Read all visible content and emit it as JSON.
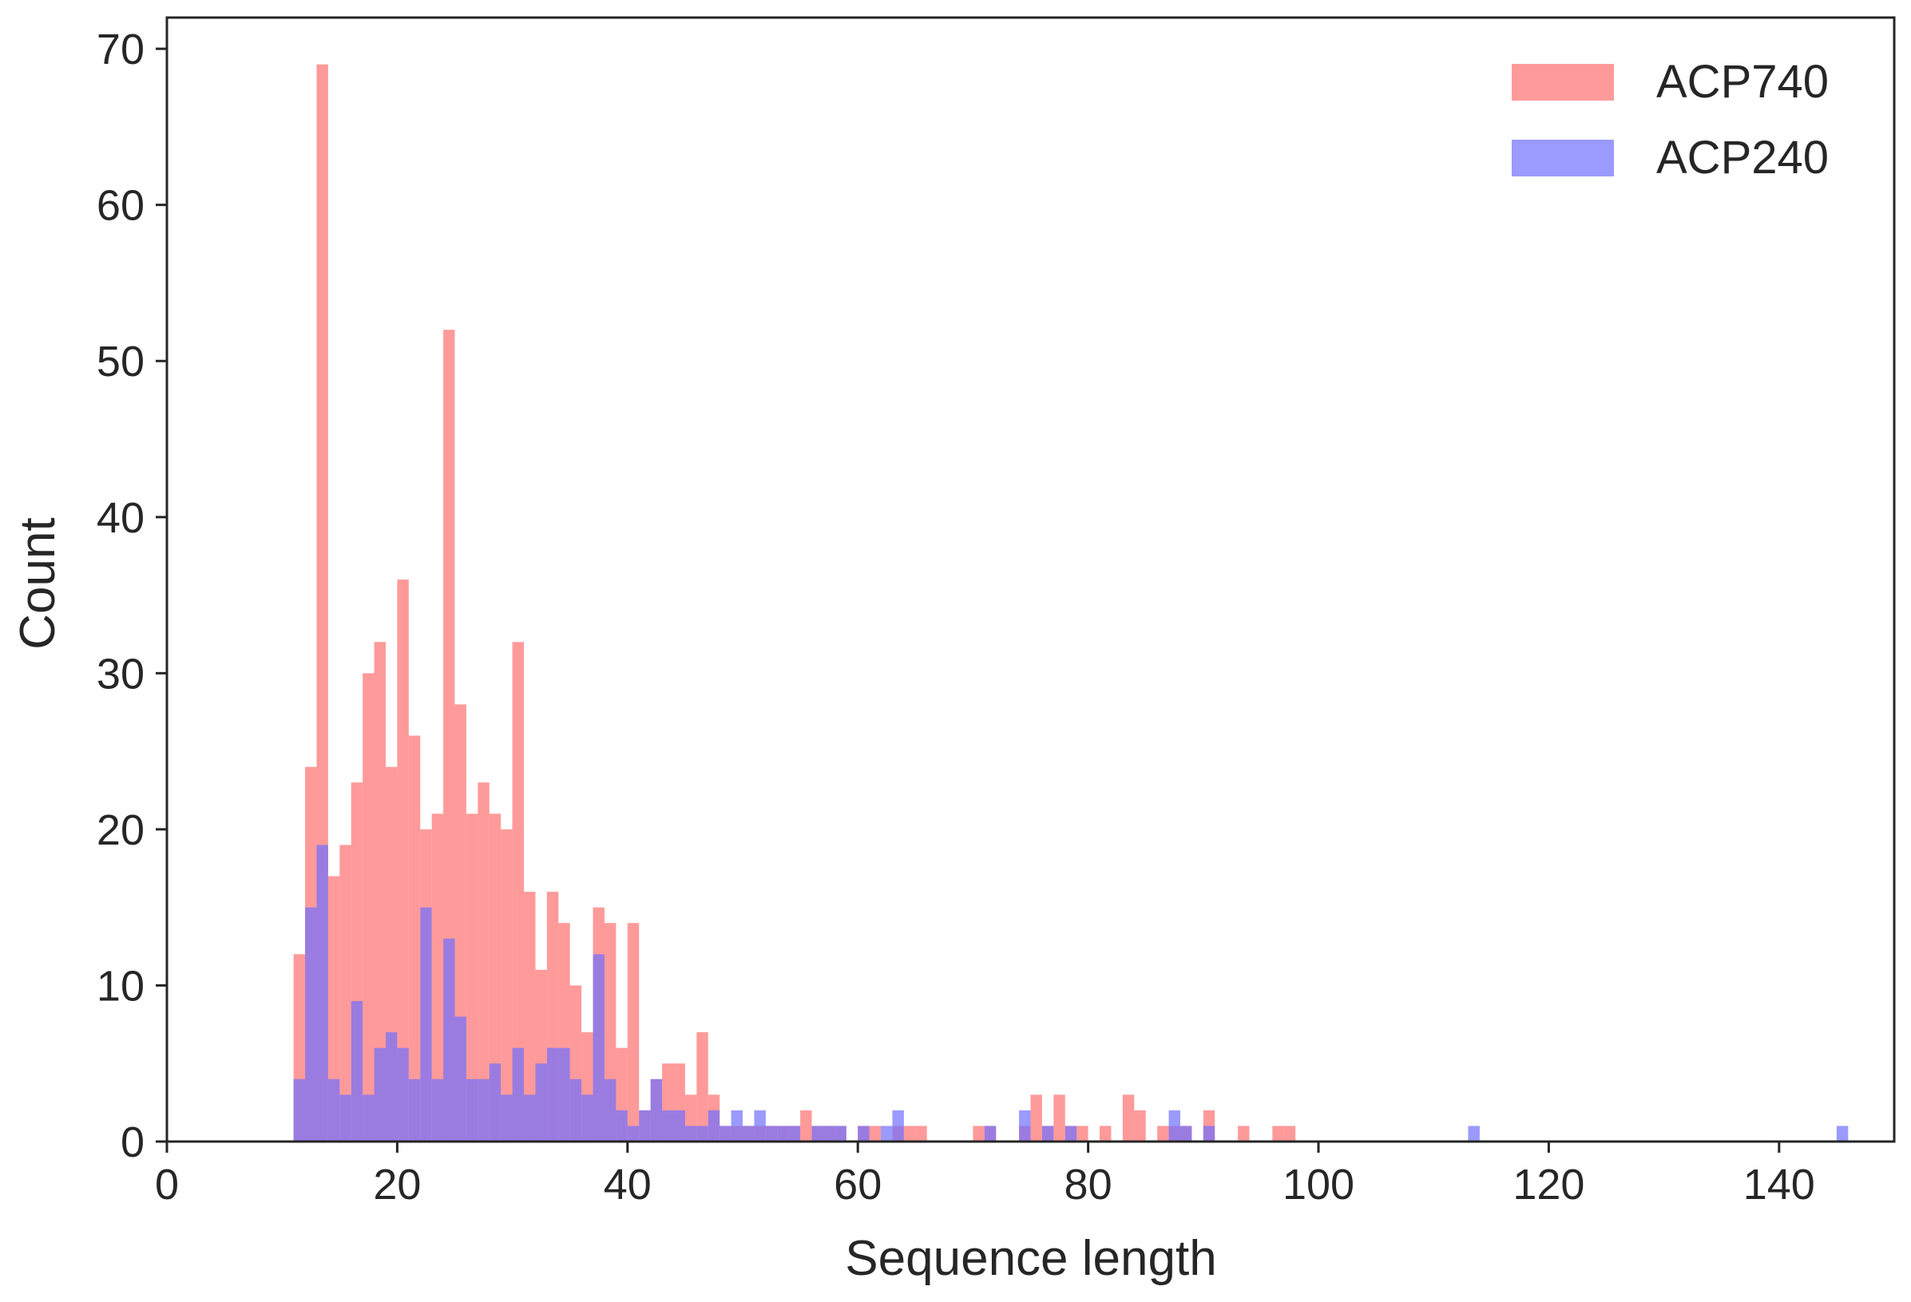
{
  "chart_data": {
    "type": "histogram",
    "title": "",
    "xlabel": "Sequence length",
    "ylabel": "Count",
    "xlim": [
      0,
      150
    ],
    "ylim": [
      0,
      72
    ],
    "xticks": [
      0,
      20,
      40,
      60,
      80,
      100,
      120,
      140
    ],
    "yticks": [
      0,
      10,
      20,
      30,
      40,
      50,
      60,
      70
    ],
    "bin_width": 1,
    "grid": false,
    "legend_position": "top-right",
    "series": [
      {
        "name": "ACP740",
        "color": "#ff6f6f",
        "alpha": 0.7,
        "bins": [
          [
            11,
            12
          ],
          [
            12,
            24
          ],
          [
            13,
            69
          ],
          [
            14,
            17
          ],
          [
            15,
            19
          ],
          [
            16,
            23
          ],
          [
            17,
            30
          ],
          [
            18,
            32
          ],
          [
            19,
            24
          ],
          [
            20,
            36
          ],
          [
            21,
            26
          ],
          [
            22,
            20
          ],
          [
            23,
            21
          ],
          [
            24,
            52
          ],
          [
            25,
            28
          ],
          [
            26,
            21
          ],
          [
            27,
            23
          ],
          [
            28,
            21
          ],
          [
            29,
            20
          ],
          [
            30,
            32
          ],
          [
            31,
            16
          ],
          [
            32,
            11
          ],
          [
            33,
            16
          ],
          [
            34,
            14
          ],
          [
            35,
            10
          ],
          [
            36,
            7
          ],
          [
            37,
            15
          ],
          [
            38,
            14
          ],
          [
            39,
            6
          ],
          [
            40,
            14
          ],
          [
            41,
            2
          ],
          [
            42,
            4
          ],
          [
            43,
            5
          ],
          [
            44,
            5
          ],
          [
            45,
            3
          ],
          [
            46,
            7
          ],
          [
            47,
            3
          ],
          [
            48,
            1
          ],
          [
            49,
            1
          ],
          [
            50,
            1
          ],
          [
            51,
            1
          ],
          [
            52,
            1
          ],
          [
            53,
            1
          ],
          [
            54,
            1
          ],
          [
            55,
            2
          ],
          [
            56,
            1
          ],
          [
            57,
            1
          ],
          [
            58,
            1
          ],
          [
            60,
            1
          ],
          [
            61,
            1
          ],
          [
            63,
            1
          ],
          [
            64,
            1
          ],
          [
            65,
            1
          ],
          [
            70,
            1
          ],
          [
            71,
            1
          ],
          [
            74,
            1
          ],
          [
            75,
            3
          ],
          [
            76,
            1
          ],
          [
            77,
            3
          ],
          [
            78,
            1
          ],
          [
            79,
            1
          ],
          [
            81,
            1
          ],
          [
            83,
            3
          ],
          [
            84,
            2
          ],
          [
            86,
            1
          ],
          [
            87,
            1
          ],
          [
            88,
            1
          ],
          [
            90,
            2
          ],
          [
            93,
            1
          ],
          [
            96,
            1
          ],
          [
            97,
            1
          ]
        ]
      },
      {
        "name": "ACP240",
        "color": "#6f6fff",
        "alpha": 0.7,
        "bins": [
          [
            11,
            4
          ],
          [
            12,
            15
          ],
          [
            13,
            19
          ],
          [
            14,
            4
          ],
          [
            15,
            3
          ],
          [
            16,
            9
          ],
          [
            17,
            3
          ],
          [
            18,
            6
          ],
          [
            19,
            7
          ],
          [
            20,
            6
          ],
          [
            21,
            4
          ],
          [
            22,
            15
          ],
          [
            23,
            4
          ],
          [
            24,
            13
          ],
          [
            25,
            8
          ],
          [
            26,
            4
          ],
          [
            27,
            4
          ],
          [
            28,
            5
          ],
          [
            29,
            3
          ],
          [
            30,
            6
          ],
          [
            31,
            3
          ],
          [
            32,
            5
          ],
          [
            33,
            6
          ],
          [
            34,
            6
          ],
          [
            35,
            4
          ],
          [
            36,
            3
          ],
          [
            37,
            12
          ],
          [
            38,
            4
          ],
          [
            39,
            2
          ],
          [
            40,
            1
          ],
          [
            41,
            2
          ],
          [
            42,
            4
          ],
          [
            43,
            2
          ],
          [
            44,
            2
          ],
          [
            45,
            1
          ],
          [
            46,
            1
          ],
          [
            47,
            2
          ],
          [
            48,
            1
          ],
          [
            49,
            2
          ],
          [
            50,
            1
          ],
          [
            51,
            2
          ],
          [
            52,
            1
          ],
          [
            53,
            1
          ],
          [
            54,
            1
          ],
          [
            56,
            1
          ],
          [
            57,
            1
          ],
          [
            58,
            1
          ],
          [
            60,
            1
          ],
          [
            62,
            1
          ],
          [
            63,
            2
          ],
          [
            71,
            1
          ],
          [
            74,
            2
          ],
          [
            76,
            1
          ],
          [
            78,
            1
          ],
          [
            87,
            2
          ],
          [
            88,
            1
          ],
          [
            90,
            1
          ],
          [
            113,
            1
          ],
          [
            145,
            1
          ]
        ]
      }
    ]
  }
}
